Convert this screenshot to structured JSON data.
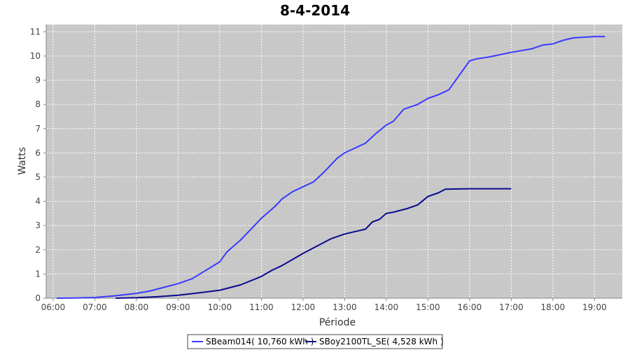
{
  "chart_data": {
    "type": "line",
    "title": "8-4-2014",
    "xlabel": "Période",
    "ylabel": "Watts",
    "xlim": [
      "05:50",
      "19:40"
    ],
    "ylim": [
      0,
      11.3
    ],
    "x_ticks": [
      "06:00",
      "07:00",
      "08:00",
      "09:00",
      "10:00",
      "11:00",
      "12:00",
      "13:00",
      "14:00",
      "15:00",
      "16:00",
      "17:00",
      "18:00",
      "19:00"
    ],
    "y_ticks": [
      0,
      1,
      2,
      3,
      4,
      5,
      6,
      7,
      8,
      9,
      10,
      11
    ],
    "grid": true,
    "legend_position": "bottom",
    "background": "#c8c8c8",
    "series": [
      {
        "name": "SBeam014( 10,760 kWh )",
        "color": "#3a3aff",
        "points": [
          [
            "06:05",
            0
          ],
          [
            "06:30",
            0.01
          ],
          [
            "07:00",
            0.03
          ],
          [
            "07:30",
            0.1
          ],
          [
            "08:00",
            0.2
          ],
          [
            "08:20",
            0.3
          ],
          [
            "08:40",
            0.45
          ],
          [
            "09:00",
            0.6
          ],
          [
            "09:20",
            0.8
          ],
          [
            "09:40",
            1.15
          ],
          [
            "10:00",
            1.5
          ],
          [
            "10:10",
            1.9
          ],
          [
            "10:30",
            2.4
          ],
          [
            "10:50",
            3.0
          ],
          [
            "11:00",
            3.3
          ],
          [
            "11:20",
            3.8
          ],
          [
            "11:30",
            4.1
          ],
          [
            "11:45",
            4.4
          ],
          [
            "12:00",
            4.6
          ],
          [
            "12:15",
            4.8
          ],
          [
            "12:30",
            5.2
          ],
          [
            "12:50",
            5.8
          ],
          [
            "13:00",
            6.0
          ],
          [
            "13:15",
            6.2
          ],
          [
            "13:30",
            6.4
          ],
          [
            "13:45",
            6.8
          ],
          [
            "14:00",
            7.15
          ],
          [
            "14:10",
            7.3
          ],
          [
            "14:25",
            7.8
          ],
          [
            "14:45",
            8.0
          ],
          [
            "15:00",
            8.25
          ],
          [
            "15:15",
            8.4
          ],
          [
            "15:30",
            8.6
          ],
          [
            "15:45",
            9.2
          ],
          [
            "16:00",
            9.8
          ],
          [
            "16:10",
            9.88
          ],
          [
            "16:30",
            9.97
          ],
          [
            "17:00",
            10.15
          ],
          [
            "17:30",
            10.3
          ],
          [
            "17:45",
            10.45
          ],
          [
            "18:00",
            10.5
          ],
          [
            "18:15",
            10.65
          ],
          [
            "18:30",
            10.75
          ],
          [
            "19:00",
            10.8
          ],
          [
            "19:15",
            10.8
          ]
        ]
      },
      {
        "name": "SBoy2100TL_SE( 4,528 kWh )",
        "color": "#0a0a90",
        "points": [
          [
            "07:30",
            0
          ],
          [
            "08:00",
            0.02
          ],
          [
            "08:30",
            0.06
          ],
          [
            "09:00",
            0.12
          ],
          [
            "09:30",
            0.22
          ],
          [
            "10:00",
            0.33
          ],
          [
            "10:30",
            0.55
          ],
          [
            "11:00",
            0.9
          ],
          [
            "11:15",
            1.15
          ],
          [
            "11:30",
            1.35
          ],
          [
            "12:00",
            1.85
          ],
          [
            "12:20",
            2.15
          ],
          [
            "12:40",
            2.45
          ],
          [
            "13:00",
            2.65
          ],
          [
            "13:15",
            2.75
          ],
          [
            "13:30",
            2.85
          ],
          [
            "13:40",
            3.15
          ],
          [
            "13:50",
            3.25
          ],
          [
            "14:00",
            3.5
          ],
          [
            "14:10",
            3.55
          ],
          [
            "14:30",
            3.7
          ],
          [
            "14:45",
            3.85
          ],
          [
            "15:00",
            4.2
          ],
          [
            "15:15",
            4.35
          ],
          [
            "15:25",
            4.5
          ],
          [
            "16:00",
            4.52
          ],
          [
            "17:00",
            4.52
          ]
        ]
      }
    ]
  }
}
